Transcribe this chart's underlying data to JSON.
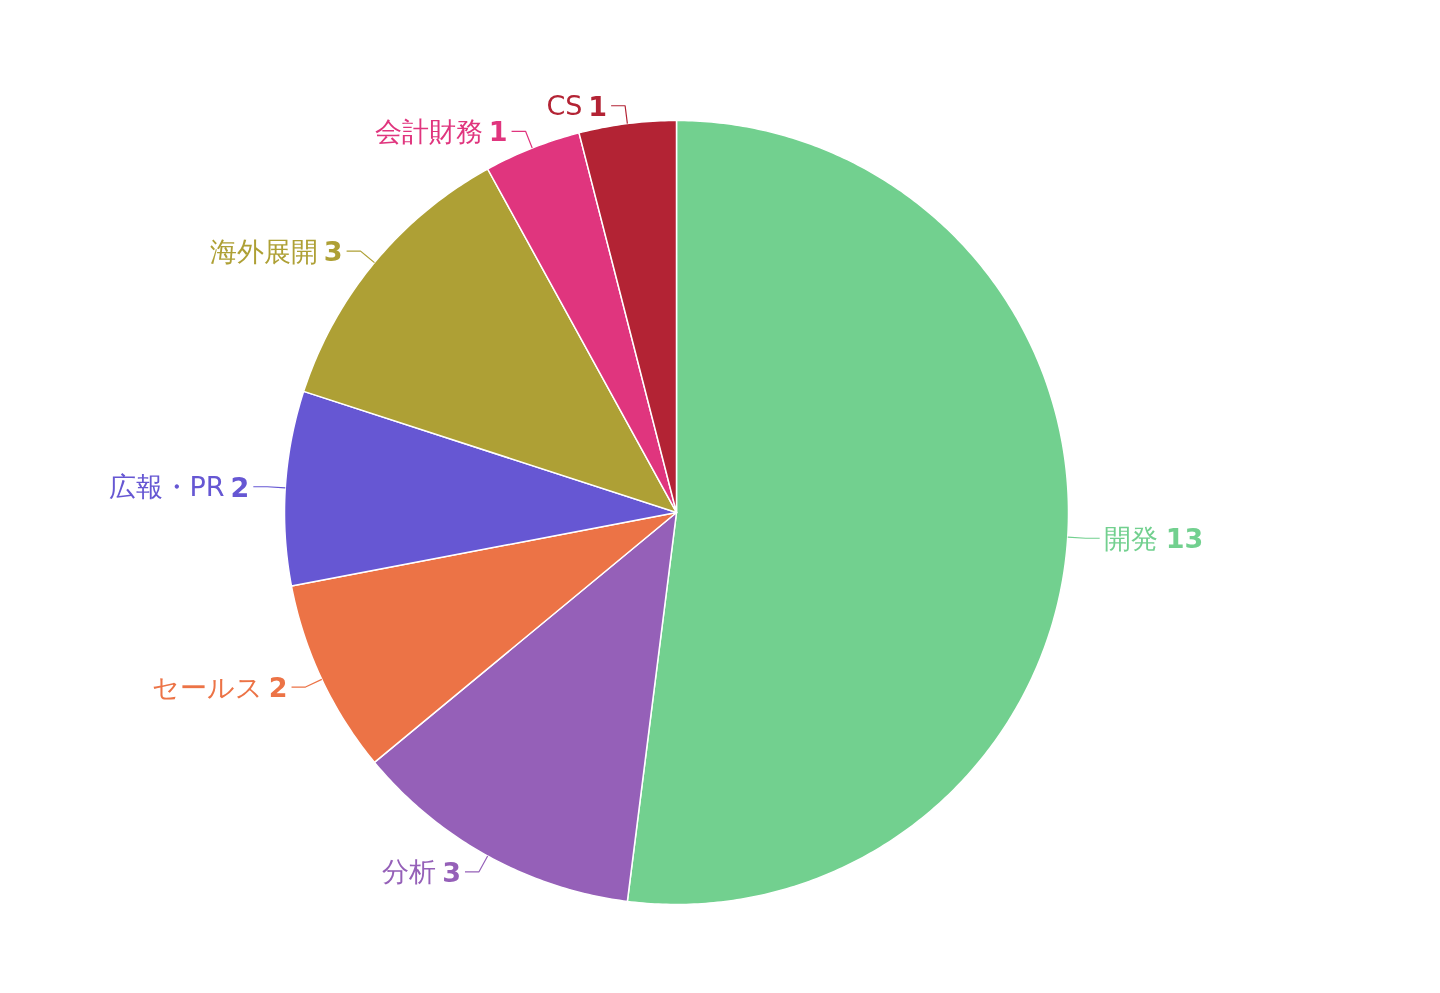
{
  "chart_data": {
    "type": "pie",
    "categories": [
      "開発",
      "分析",
      "セールス",
      "広報・PR",
      "海外展開",
      "会計財務",
      "CS"
    ],
    "values": [
      13,
      3,
      2,
      2,
      3,
      1,
      1
    ],
    "colors": [
      "#72d08f",
      "#9560b8",
      "#ec7346",
      "#6657d3",
      "#aea035",
      "#e0357e",
      "#b32334"
    ],
    "data_labels": true
  }
}
